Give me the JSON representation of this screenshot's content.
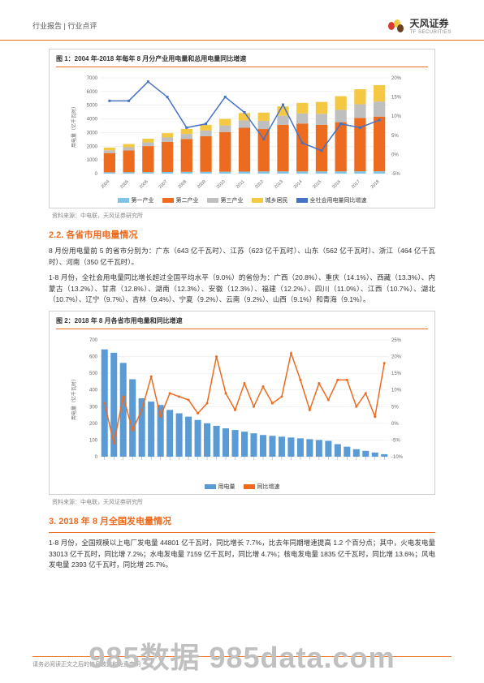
{
  "header": {
    "left": "行业报告 | 行业点评",
    "logo_text": "天风证券",
    "logo_sub": "TF SECURITIES"
  },
  "chart1": {
    "title": "图 1：2004 年-2018 年每年 8 月分产业用电量和总用电量同比增速",
    "source": "资料来源：中电联，天风证券研究所",
    "type": "bar+line",
    "categories": [
      "2004",
      "2005",
      "2006",
      "2007",
      "2008",
      "2009",
      "2010",
      "2011",
      "2012",
      "2013",
      "2014",
      "2015",
      "2016",
      "2017",
      "2018"
    ],
    "y1_max": 7000,
    "y1_step": 1000,
    "y1_label": "用电量（亿千瓦时）",
    "y2_max": 20,
    "y2_min": -5,
    "y2_step": 5,
    "series": {
      "ind1": {
        "label": "第一产业",
        "color": "#7ec4e6",
        "values": [
          100,
          100,
          110,
          120,
          130,
          130,
          140,
          150,
          160,
          160,
          160,
          160,
          160,
          170,
          170
        ]
      },
      "ind2": {
        "label": "第二产业",
        "color": "#ec6b1f",
        "values": [
          1400,
          1600,
          1900,
          2200,
          2400,
          2600,
          2900,
          3200,
          3100,
          3400,
          3500,
          3400,
          3600,
          3900,
          4000
        ]
      },
      "ind3": {
        "label": "第三产业",
        "color": "#bfbfbf",
        "values": [
          200,
          230,
          270,
          320,
          370,
          420,
          480,
          540,
          600,
          670,
          740,
          810,
          900,
          1000,
          1100
        ]
      },
      "resid": {
        "label": "城乡居民",
        "color": "#f4c842",
        "values": [
          200,
          230,
          270,
          320,
          370,
          420,
          480,
          540,
          600,
          680,
          770,
          870,
          1000,
          1100,
          1200
        ]
      },
      "growth": {
        "label": "全社会用电量同比增速",
        "color": "#4472c4",
        "values": [
          14,
          14,
          19,
          15,
          7,
          8,
          15,
          11,
          4,
          13,
          3,
          1,
          8,
          7,
          9
        ]
      }
    }
  },
  "section2": {
    "title": "2.2. 各省市用电量情况",
    "para1": "8 月份用电量前 5 的省市分别为：广东（643 亿千瓦时）、江苏（623 亿千瓦时）、山东（562 亿千瓦时）、浙江（464 亿千瓦时）、河南（350 亿千瓦时）。",
    "para2": "1-8 月份，全社会用电量同比增长超过全国平均水平（9.0%）的省份为：广西（20.8%）、重庆（14.1%）、西藏（13.3%）、内蒙古（13.2%）、甘肃（12.8%）、湖南（12.3%）、安徽（12.3%）、福建（12.2%）、四川（11.0%）、江西（10.7%）、湖北（10.7%）、辽宁（9.7%）、吉林（9.4%）、宁夏（9.2%）、云南（9.2%）、山西（9.1%）和青海（9.1%）。"
  },
  "chart2": {
    "title": "图 2：2018 年 8 月各省市用电量和同比增速",
    "source": "资料来源：中电联，天风证券研究所",
    "type": "bar+line",
    "y1_max": 700,
    "y1_step": 100,
    "y1_label": "用电量（亿千瓦时）",
    "y2_max": 25,
    "y2_min": -10,
    "y2_step": 5,
    "bar_color": "#5b9bd5",
    "line_color": "#ec6b1f",
    "n_provinces": 31,
    "bar_values": [
      643,
      623,
      562,
      464,
      350,
      330,
      310,
      280,
      260,
      240,
      220,
      200,
      185,
      170,
      160,
      150,
      140,
      130,
      125,
      120,
      115,
      110,
      105,
      100,
      95,
      75,
      60,
      45,
      35,
      25,
      15
    ],
    "line_values": [
      6,
      -6,
      8,
      -2,
      4,
      14,
      2,
      9,
      8,
      7,
      3,
      6,
      20,
      9,
      4,
      12,
      5,
      11,
      6,
      8,
      21,
      13,
      4,
      12,
      7,
      13,
      13,
      5,
      9,
      2,
      18
    ],
    "legend": {
      "bar": "用电量",
      "line": "同比增速"
    }
  },
  "section3": {
    "title": "3. 2018 年 8 月全国发电量情况",
    "para1": "1-8 月份，全国规模以上电厂发电量 44801 亿千瓦时，同比增长 7.7%，比去年同期增速提高 1.2 个百分点；其中，火电发电量 33013 亿千瓦时，同比增 7.2%；水电发电量 7159 亿千瓦时，同比增 4.7%；核电发电量 1835 亿千瓦时，同比增 13.6%；风电发电量 2393 亿千瓦时，同比增 25.7%。"
  },
  "footer": {
    "disclaimer": "请务必阅读正文之后的信息披露和免责申明"
  },
  "watermark": "985数据 985data.com"
}
